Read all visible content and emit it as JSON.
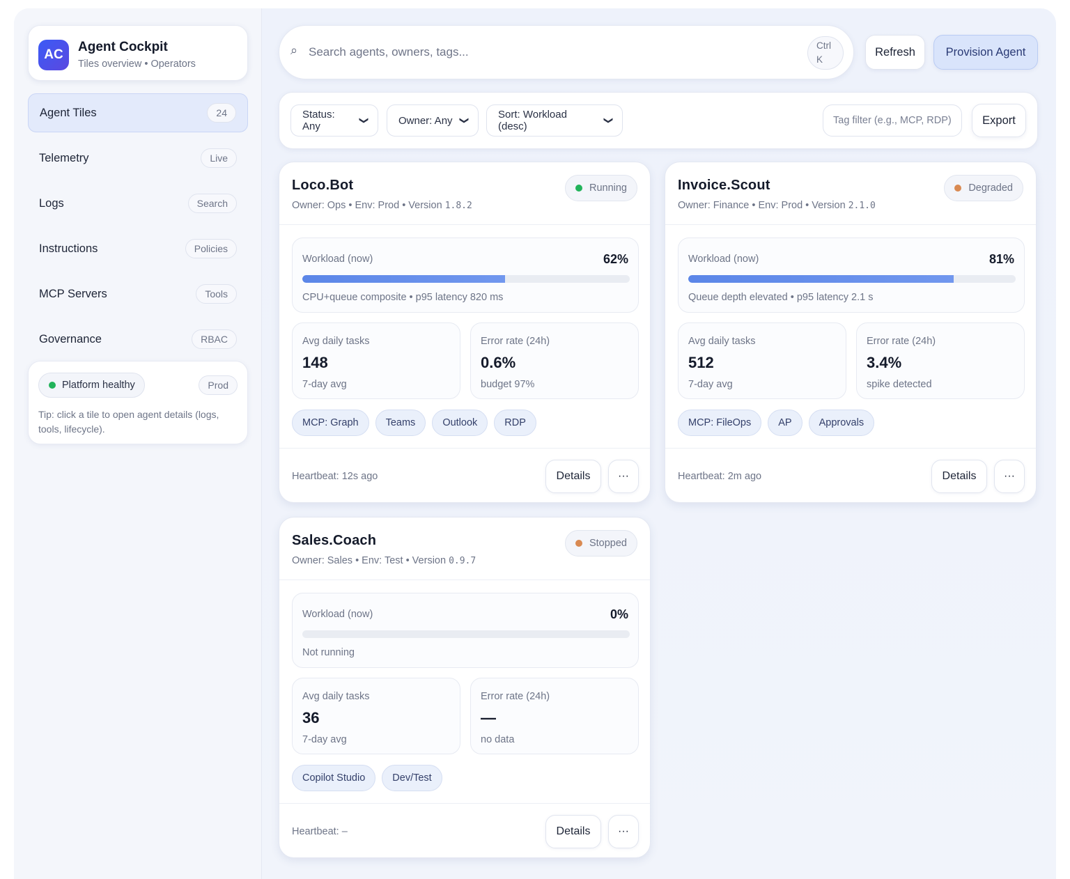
{
  "brand": {
    "logo_text": "AC",
    "title": "Agent Cockpit",
    "subtitle": "Tiles overview • Operators"
  },
  "sidebar": {
    "items": [
      {
        "label": "Agent Tiles",
        "badge": "24"
      },
      {
        "label": "Telemetry",
        "badge": "Live"
      },
      {
        "label": "Logs",
        "badge": "Search"
      },
      {
        "label": "Instructions",
        "badge": "Policies"
      },
      {
        "label": "MCP Servers",
        "badge": "Tools"
      },
      {
        "label": "Governance",
        "badge": "RBAC"
      }
    ],
    "health": {
      "label": "Platform healthy",
      "env": "Prod",
      "tip": "Tip: click a tile to open agent details (logs, tools, lifecycle)."
    }
  },
  "search": {
    "icon": "⌕",
    "placeholder": "Search agents, owners, tags...",
    "shortcut_line1": "Ctrl",
    "shortcut_line2": "K"
  },
  "toolbar": {
    "refresh_label": "Refresh",
    "provision_label": "Provision Agent"
  },
  "filters": {
    "status": "Status: Any",
    "owner": "Owner: Any",
    "sort": "Sort: Workload (desc)",
    "tag_placeholder": "Tag filter (e.g., MCP, RDP)",
    "export_label": "Export"
  },
  "colors": {
    "accent": "#3b5bf6",
    "running": "#22b35a",
    "degraded": "#d98a52",
    "stopped": "#d98a52"
  },
  "agents": [
    {
      "name": "Loco.Bot",
      "meta_prefix": "Owner: Ops • Env: Prod • Version ",
      "version": "1.8.2",
      "status": "Running",
      "workload_label": "Workload (now)",
      "workload_pct": "62%",
      "workload_value": 0.62,
      "workload_note": "CPU+queue composite • p95 latency 820 ms",
      "tasks_label": "Avg daily tasks",
      "tasks_value": "148",
      "tasks_note": "7-day avg",
      "error_label": "Error rate (24h)",
      "error_value": "0.6%",
      "error_note": "budget 97%",
      "tags": [
        "MCP: Graph",
        "Teams",
        "Outlook",
        "RDP"
      ],
      "heartbeat": "Heartbeat: 12s ago",
      "details_label": "Details",
      "more_label": "···"
    },
    {
      "name": "Invoice.Scout",
      "meta_prefix": "Owner: Finance • Env: Prod • Version ",
      "version": "2.1.0",
      "status": "Degraded",
      "workload_label": "Workload (now)",
      "workload_pct": "81%",
      "workload_value": 0.81,
      "workload_note": "Queue depth elevated • p95 latency 2.1 s",
      "tasks_label": "Avg daily tasks",
      "tasks_value": "512",
      "tasks_note": "7-day avg",
      "error_label": "Error rate (24h)",
      "error_value": "3.4%",
      "error_note": "spike detected",
      "tags": [
        "MCP: FileOps",
        "AP",
        "Approvals"
      ],
      "heartbeat": "Heartbeat: 2m ago",
      "details_label": "Details",
      "more_label": "···"
    },
    {
      "name": "Sales.Coach",
      "meta_prefix": "Owner: Sales • Env: Test • Version ",
      "version": "0.9.7",
      "status": "Stopped",
      "workload_label": "Workload (now)",
      "workload_pct": "0%",
      "workload_value": 0,
      "workload_note": "Not running",
      "tasks_label": "Avg daily tasks",
      "tasks_value": "36",
      "tasks_note": "7-day avg",
      "error_label": "Error rate (24h)",
      "error_value": "—",
      "error_note": "no data",
      "tags": [
        "Copilot Studio",
        "Dev/Test"
      ],
      "heartbeat": "Heartbeat: –",
      "details_label": "Details",
      "more_label": "···"
    }
  ]
}
